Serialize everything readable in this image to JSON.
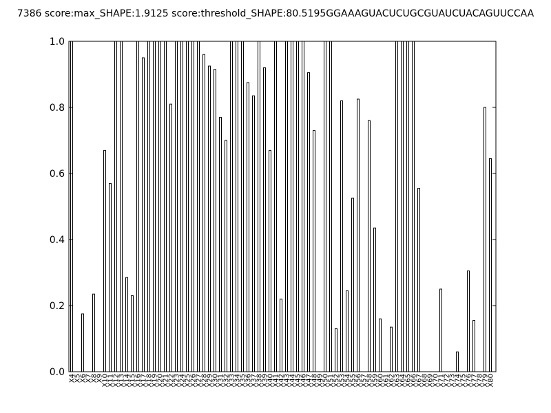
{
  "chart_data": {
    "type": "bar",
    "title": "7386 score:max_SHAPE:1.9125 score:threshold_SHAPE:80.5195GGAAAGUACUCUGCGUAUCUACAGUUCCAA",
    "xlabel": "",
    "ylabel": "",
    "ylim": [
      0.0,
      1.0
    ],
    "yticks": [
      "0.0",
      "0.2",
      "0.4",
      "0.6",
      "0.8",
      "1.0"
    ],
    "grid": false,
    "categories": [
      "X4",
      "X5",
      "X6",
      "X7",
      "X8",
      "X9",
      "X10",
      "X11",
      "X12",
      "X13",
      "X14",
      "X15",
      "X16",
      "X17",
      "X18",
      "X19",
      "X20",
      "X21",
      "X22",
      "X23",
      "X24",
      "X25",
      "X26",
      "X27",
      "X28",
      "X29",
      "X30",
      "X31",
      "X32",
      "X33",
      "X34",
      "X35",
      "X36",
      "X37",
      "X38",
      "X39",
      "X40",
      "X41",
      "X42",
      "X43",
      "X44",
      "X45",
      "X46",
      "X47",
      "X48",
      "X49",
      "X50",
      "X51",
      "X52",
      "X53",
      "X54",
      "X55",
      "X56",
      "X57",
      "X58",
      "X59",
      "X60",
      "X61",
      "X62",
      "X63",
      "X64",
      "X65",
      "X66",
      "X67",
      "X68",
      "X69",
      "X70",
      "X71",
      "X72",
      "X73",
      "X74",
      "X75",
      "X76",
      "X77",
      "X78",
      "X79",
      "X80"
    ],
    "values": [
      1.0,
      0.0,
      0.175,
      0.0,
      0.235,
      0.0,
      0.67,
      0.57,
      1.0,
      1.0,
      0.285,
      0.23,
      1.0,
      0.95,
      1.0,
      1.0,
      1.0,
      1.0,
      0.81,
      1.0,
      1.0,
      1.0,
      1.0,
      1.0,
      0.96,
      0.925,
      0.915,
      0.77,
      0.7,
      1.0,
      1.0,
      1.0,
      0.875,
      0.835,
      1.0,
      0.92,
      0.67,
      1.0,
      0.22,
      1.0,
      1.0,
      1.0,
      1.0,
      0.905,
      0.73,
      0.0,
      1.0,
      1.0,
      0.13,
      0.82,
      0.245,
      0.525,
      0.825,
      0.0,
      0.76,
      0.435,
      0.16,
      0.0,
      0.135,
      1.0,
      1.0,
      1.0,
      1.0,
      0.555,
      0.0,
      0.0,
      0.0,
      0.25,
      0.0,
      0.0,
      0.06,
      0.0,
      0.305,
      0.155,
      0.0,
      0.8,
      0.645
    ]
  }
}
